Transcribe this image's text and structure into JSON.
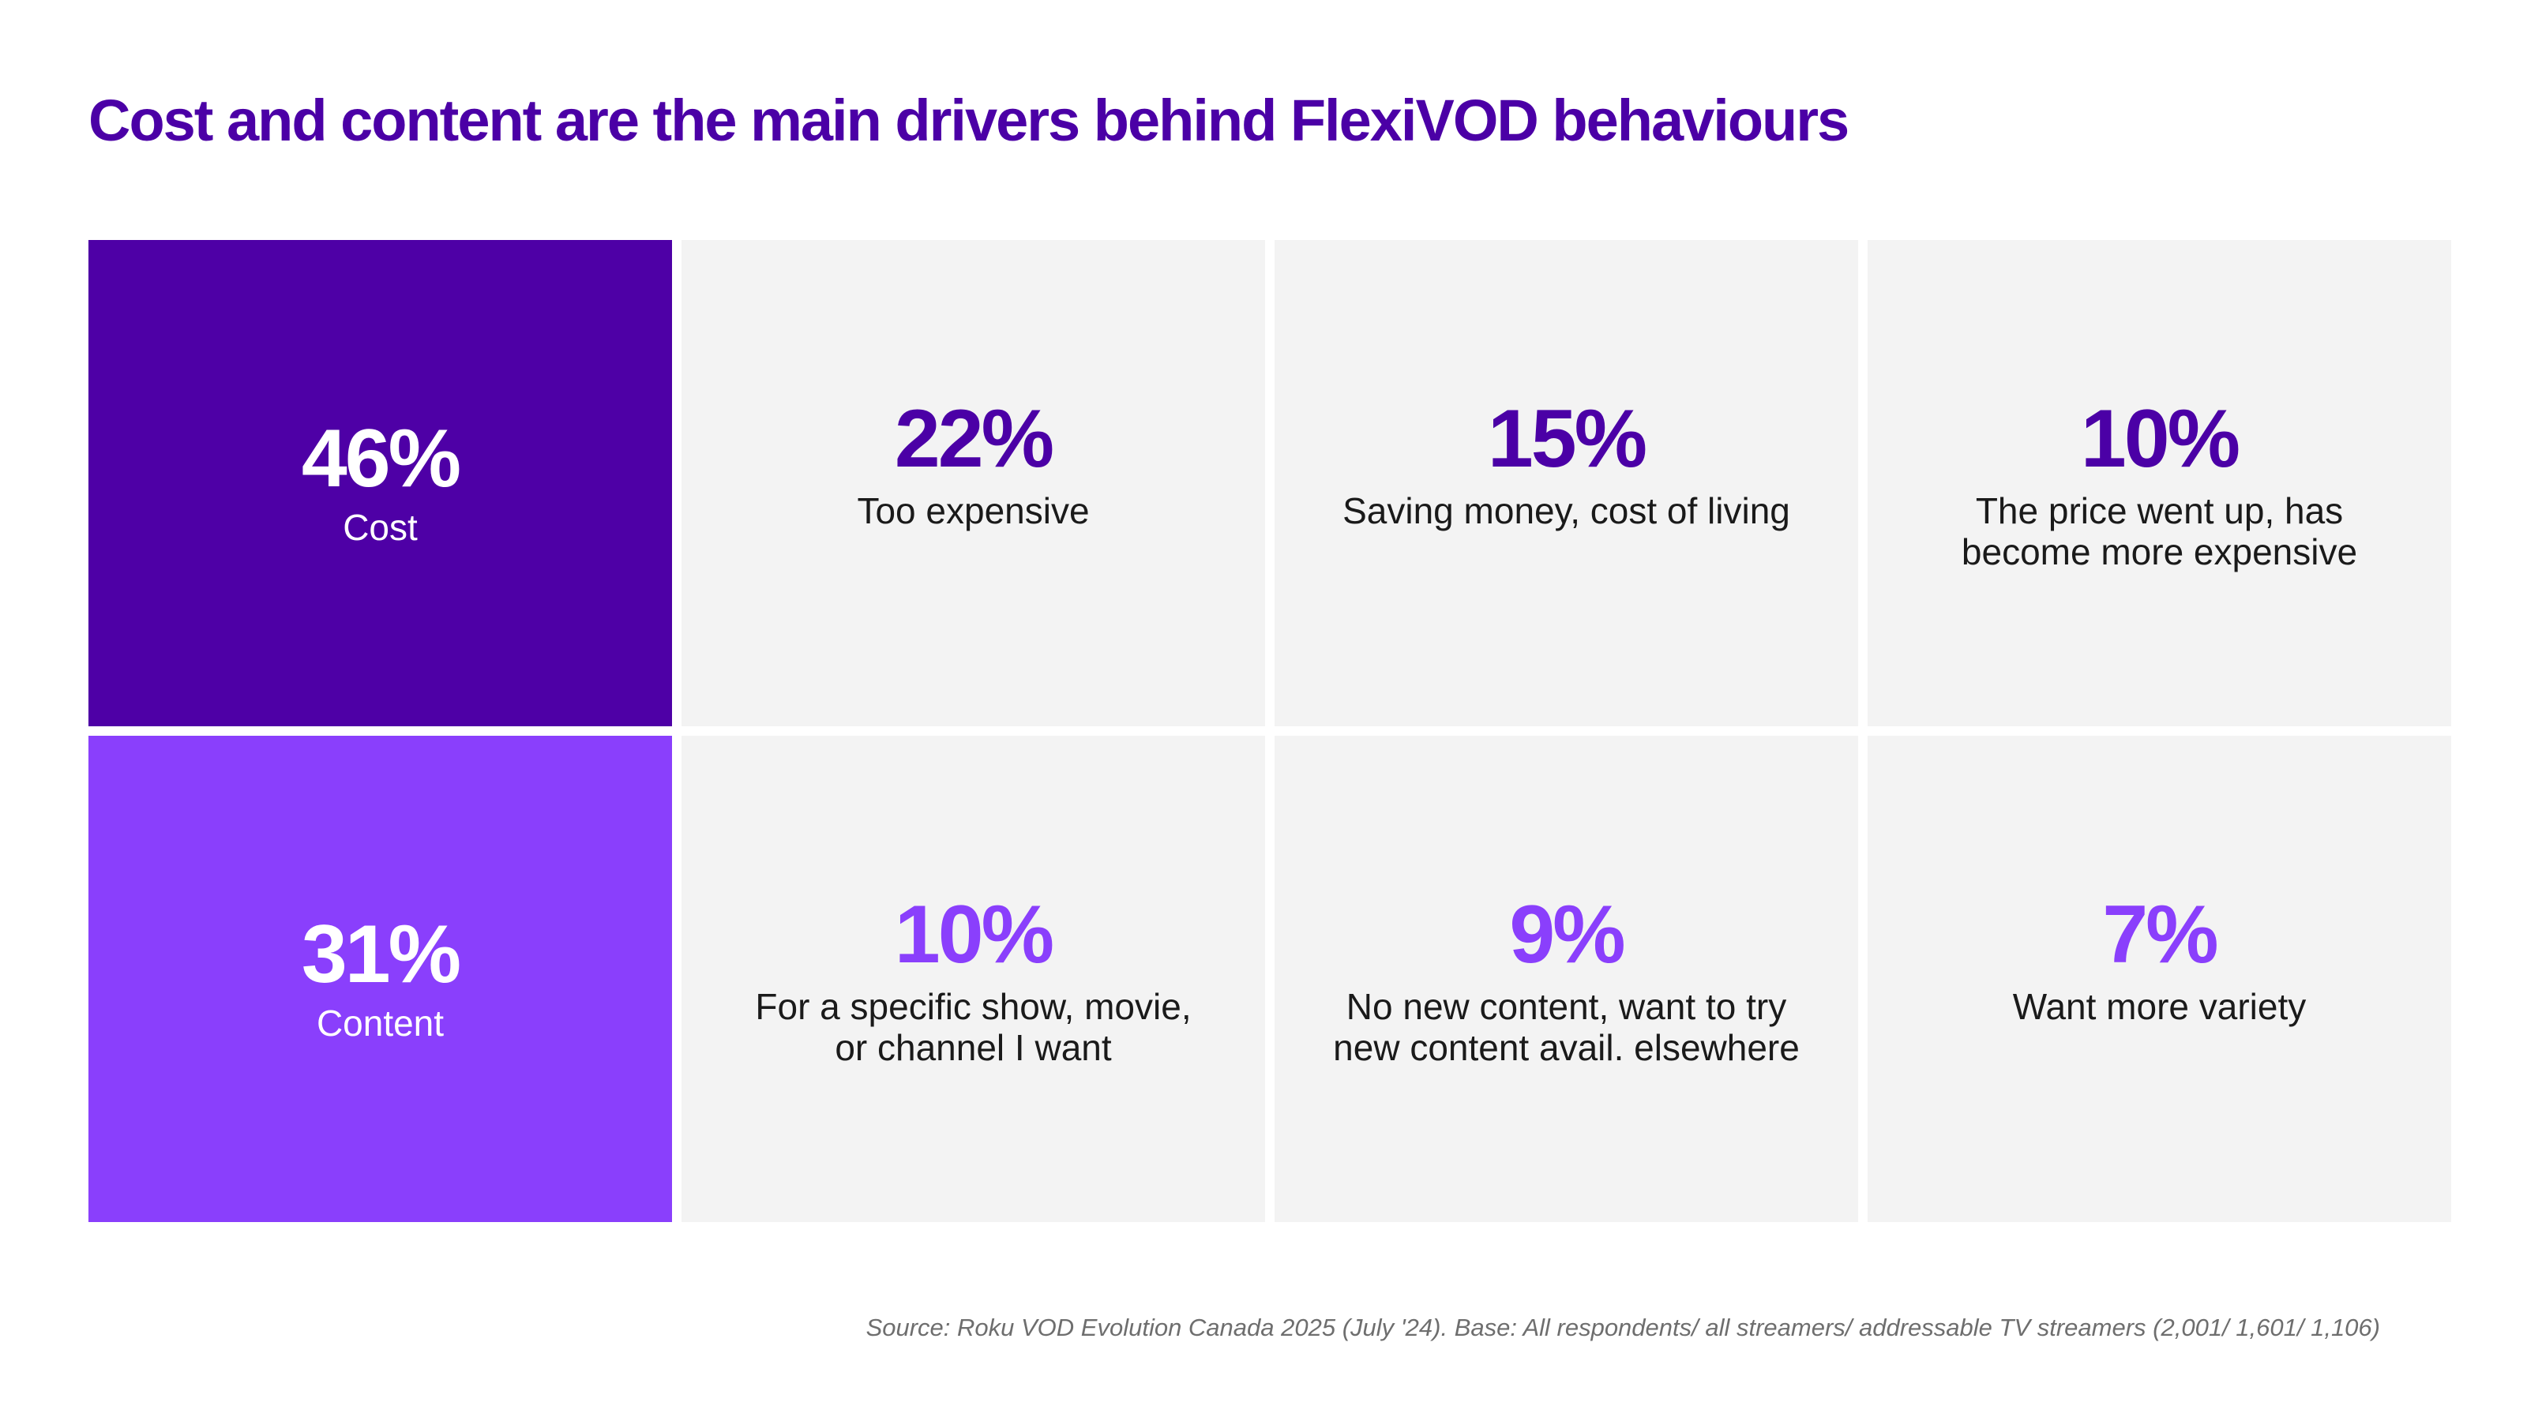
{
  "title": "Cost and content are the main drivers behind FlexiVOD behaviours",
  "colors": {
    "title": "#4b00a6",
    "cost": "#4e00a6",
    "content": "#8a3ffc",
    "tile": "#f3f3f3",
    "source": "#6e6e6e"
  },
  "rows": [
    {
      "head": {
        "value": "46%",
        "label": "Cost"
      },
      "items": [
        {
          "value": "22%",
          "label": "Too expensive"
        },
        {
          "value": "15%",
          "label": "Saving money, cost of living"
        },
        {
          "value": "10%",
          "label_line1": "The price went up, has",
          "label_line2": "become more expensive"
        }
      ]
    },
    {
      "head": {
        "value": "31%",
        "label": "Content"
      },
      "items": [
        {
          "value": "10%",
          "label_line1": "For a specific show, movie,",
          "label_line2": "or channel I want"
        },
        {
          "value": "9%",
          "label_line1": "No new content, want to try",
          "label_line2": "new content avail. elsewhere"
        },
        {
          "value": "7%",
          "label": "Want more variety"
        }
      ]
    }
  ],
  "source": "Source: Roku VOD Evolution Canada 2025 (July '24). Base: All respondents/ all streamers/ addressable TV streamers (2,001/ 1,601/ 1,106)"
}
